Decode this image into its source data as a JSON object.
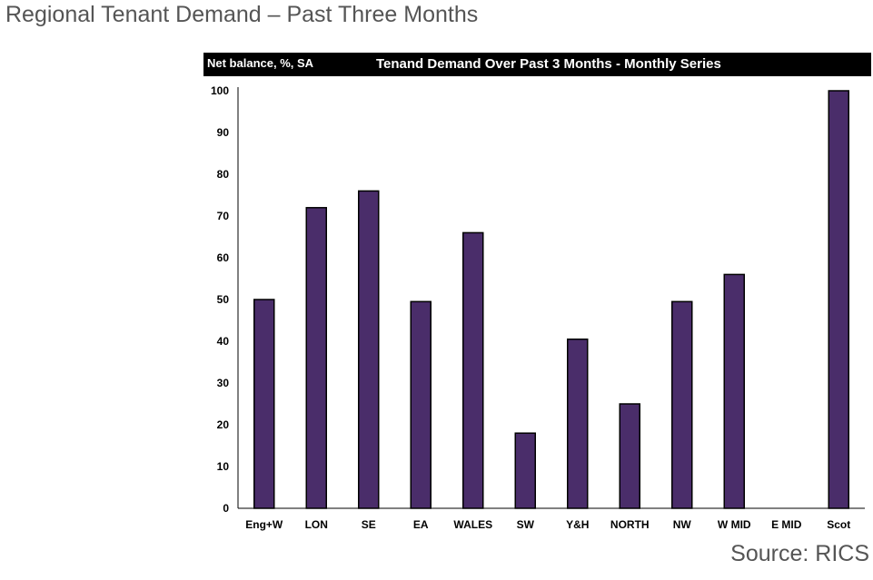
{
  "header": {
    "title": "Regional Tenant Demand – Past Three Months"
  },
  "footer": {
    "source": "Source: RICS"
  },
  "colors": {
    "bar_fill": "#4a2d6a",
    "bar_stroke": "#000000",
    "header_bg": "#000000"
  },
  "chart_data": {
    "type": "bar",
    "title": "Tenand Demand Over Past 3 Months - Monthly Series",
    "ylabel": "Net balance, %, SA",
    "xlabel": "",
    "categories": [
      "Eng+W",
      "LON",
      "SE",
      "EA",
      "WALES",
      "SW",
      "Y&H",
      "NORTH",
      "NW",
      "W MID",
      "E MID",
      "Scot"
    ],
    "values": [
      50,
      72,
      76,
      49.5,
      66,
      18,
      40.5,
      25,
      49.5,
      56,
      0,
      100
    ],
    "ylim": [
      0,
      100
    ],
    "yticks": [
      0,
      10,
      20,
      30,
      40,
      50,
      60,
      70,
      80,
      90,
      100
    ],
    "grid": false,
    "legend": "none"
  }
}
